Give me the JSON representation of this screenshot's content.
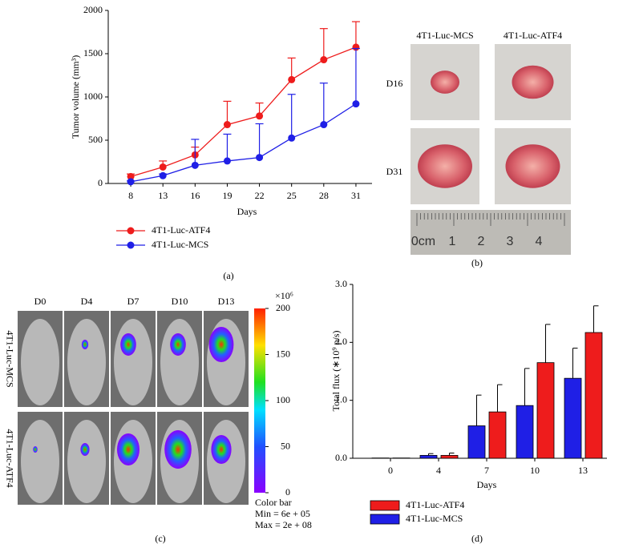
{
  "chart_data": [
    {
      "type": "line",
      "panel_label": "(a)",
      "x_label": "Days",
      "y_label": "Tumor volume (mm³)",
      "categories": [
        "8",
        "13",
        "16",
        "19",
        "22",
        "25",
        "28",
        "31"
      ],
      "ylim": [
        0,
        2000
      ],
      "yticks": [
        0,
        500,
        1000,
        1500,
        2000
      ],
      "series": [
        {
          "name": "4T1-Luc-ATF4",
          "color": "#ee1c1c",
          "values": [
            80,
            190,
            330,
            680,
            780,
            1200,
            1430,
            1575
          ],
          "errors": [
            30,
            70,
            90,
            270,
            150,
            250,
            360,
            295
          ]
        },
        {
          "name": "4T1-Luc-MCS",
          "color": "#1f1fe6",
          "values": [
            20,
            90,
            210,
            260,
            300,
            525,
            680,
            920
          ],
          "errors": [
            10,
            20,
            300,
            310,
            390,
            505,
            480,
            640
          ]
        }
      ]
    },
    {
      "type": "bar",
      "panel_label": "(d)",
      "x_label": "Days",
      "y_label": "Total flux (∗10⁹ p/s)",
      "categories": [
        "0",
        "4",
        "7",
        "10",
        "13"
      ],
      "ylim": [
        0,
        3
      ],
      "yticks": [
        {
          "value": 0,
          "label": "0.0"
        },
        {
          "value": 1,
          "label": "1.0"
        },
        {
          "value": 2,
          "label": "2.0"
        },
        {
          "value": 3,
          "label": "3.0"
        }
      ],
      "series": [
        {
          "name": "4T1-Luc-ATF4",
          "color": "#ee1c1c",
          "values": [
            0.005,
            0.05,
            0.8,
            1.65,
            2.17
          ],
          "errors": [
            0,
            0.04,
            0.47,
            0.66,
            0.46
          ]
        },
        {
          "name": "4T1-Luc-MCS",
          "color": "#1f1fe6",
          "values": [
            0.005,
            0.05,
            0.56,
            0.91,
            1.38
          ],
          "errors": [
            0,
            0.03,
            0.53,
            0.64,
            0.52
          ]
        }
      ]
    }
  ],
  "photo_panel": {
    "panel_label": "(b)",
    "columns": [
      "4T1-Luc-MCS",
      "4T1-Luc-ATF4"
    ],
    "rows": [
      "D16",
      "D31"
    ],
    "ruler_labels": [
      "0cm",
      "1",
      "2",
      "3",
      "4"
    ]
  },
  "imaging_panel": {
    "panel_label": "(c)",
    "days": [
      "D0",
      "D4",
      "D7",
      "D10",
      "D13"
    ],
    "rows": [
      "4T1-Luc-MCS",
      "4T1-Luc-ATF4"
    ],
    "colorbar": {
      "unit_label": "×10⁶",
      "lim": [
        0,
        200
      ],
      "ticks": [
        0,
        50,
        100,
        150,
        200
      ],
      "title": "Color bar",
      "min_label": "Min = 6e + 05",
      "max_label": "Max = 2e + 08"
    }
  }
}
